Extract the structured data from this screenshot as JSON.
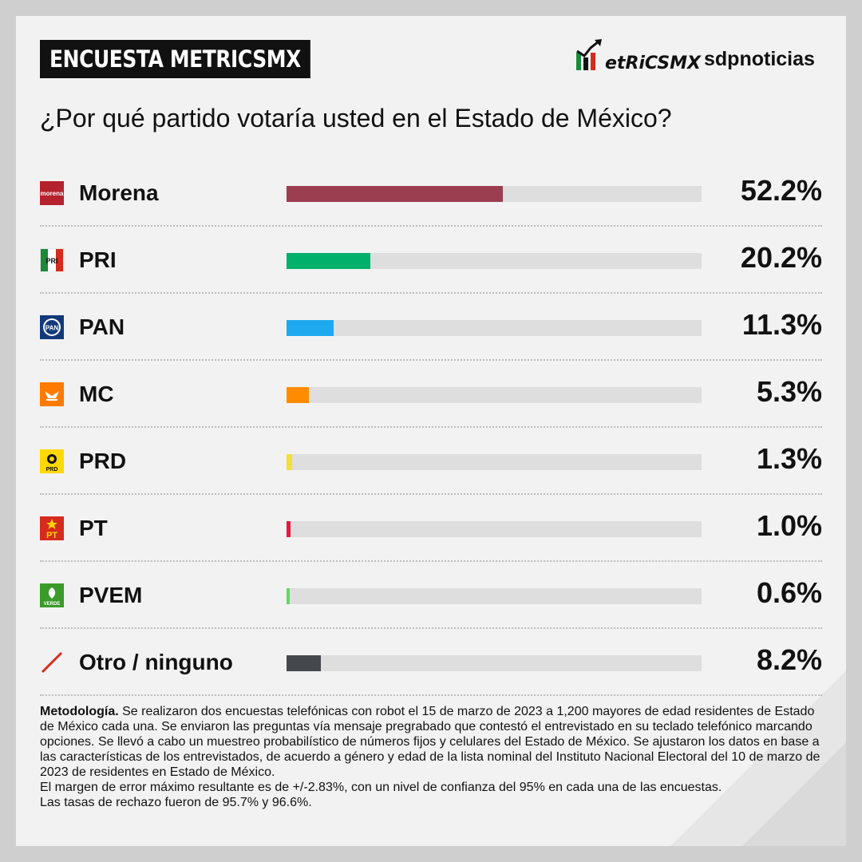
{
  "header": {
    "badge": "ENCUESTA METRICSMX",
    "logo_metrics": "etRiCSMX",
    "logo_sdp": "sdpnoticias"
  },
  "chart_data": {
    "type": "bar",
    "orientation": "horizontal",
    "title": "¿Por qué partido votaría usted en el Estado de México?",
    "categories": [
      "Morena",
      "PRI",
      "PAN",
      "MC",
      "PRD",
      "PT",
      "PVEM",
      "Otro / ninguno"
    ],
    "values": [
      52.2,
      20.2,
      11.3,
      5.3,
      1.3,
      1.0,
      0.6,
      8.2
    ],
    "value_labels": [
      "52.2%",
      "20.2%",
      "11.3%",
      "5.3%",
      "1.3%",
      "1.0%",
      "0.6%",
      "8.2%"
    ],
    "colors": [
      "#9b3e50",
      "#00b06b",
      "#1ea9ef",
      "#ff8c00",
      "#f2df3a",
      "#e8173f",
      "#66d466",
      "#45484d"
    ],
    "icons": [
      "morena-logo-icon",
      "pri-logo-icon",
      "pan-logo-icon",
      "mc-logo-icon",
      "prd-logo-icon",
      "pt-logo-icon",
      "pvem-logo-icon",
      "slash-icon"
    ],
    "icon_texts": [
      "morena",
      "PRI",
      "PAN",
      "",
      "PRD",
      "PT",
      "VERDE",
      ""
    ],
    "xlim": [
      0,
      100
    ],
    "grid": false,
    "legend": "none"
  },
  "methodology": {
    "heading": "Metodología.",
    "text": "Se realizaron dos encuestas telefónicas con robot el 15 de marzo de 2023 a 1,200 mayores de edad residentes de Estado de México cada una. Se enviaron las preguntas vía mensaje pregrabado que contestó el entrevistado en su teclado telefónico marcando opciones. Se llevó a cabo un muestreo probabilístico de números fijos y celulares del Estado de México. Se ajustaron los datos en base a las características de los entrevistados, de acuerdo a género y edad de la lista nominal del Instituto Nacional Electoral del 10 de marzo de 2023 de residentes en Estado de México.",
    "text2": "El margen de error máximo resultante es de +/-2.83%, con un nivel de confianza del 95% en cada una de las encuestas.",
    "text3": "Las tasas de rechazo fueron de 95.7% y 96.6%."
  }
}
